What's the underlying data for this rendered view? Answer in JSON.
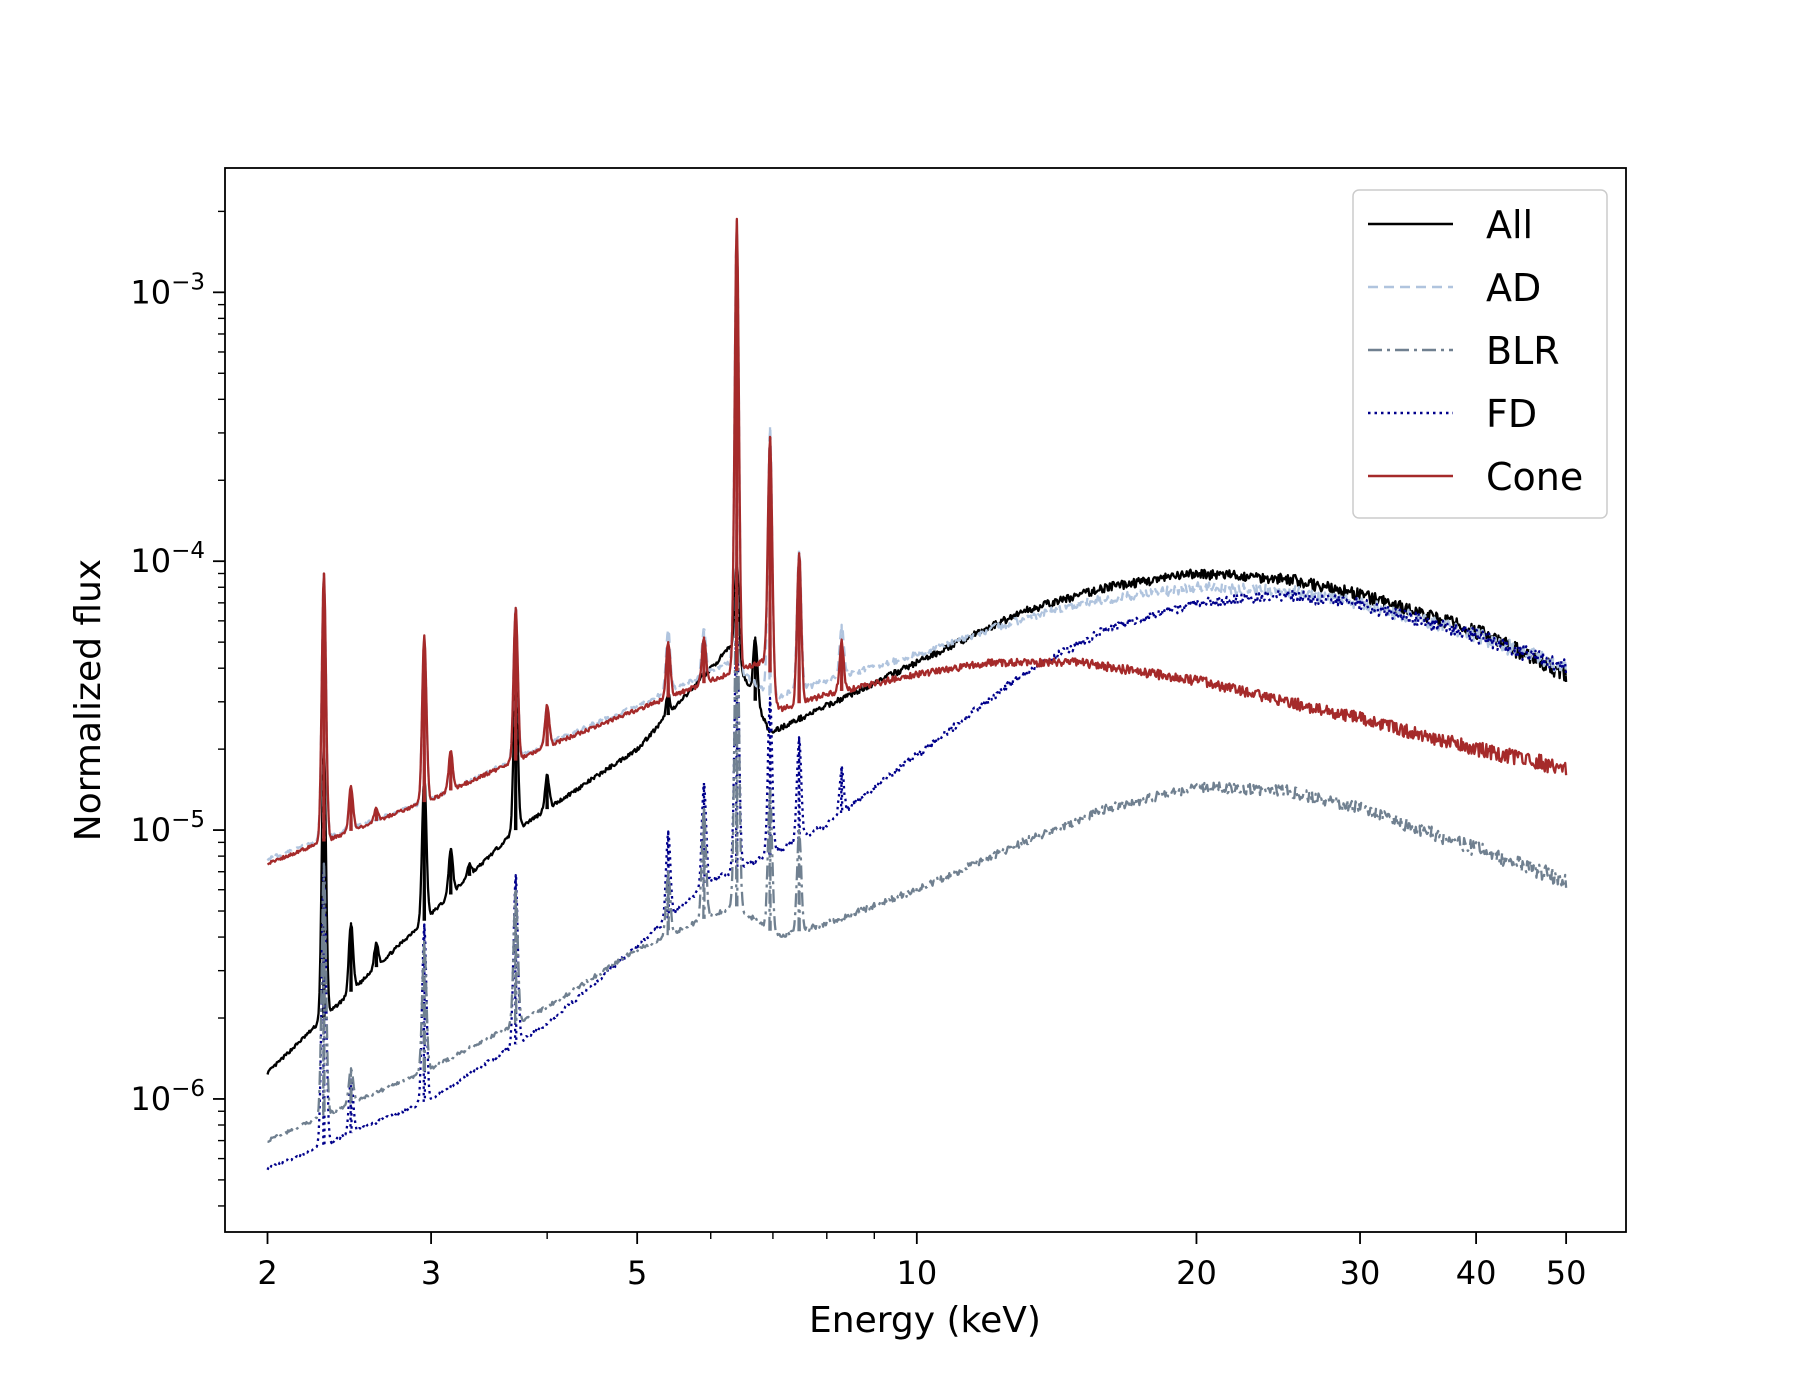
{
  "chart_data": {
    "type": "line",
    "title": "",
    "xlabel": "Energy (keV)",
    "ylabel": "Normalized flux",
    "xscale": "log",
    "yscale": "log",
    "xlim": [
      1.8,
      58
    ],
    "ylim": [
      3.2e-07,
      0.0029
    ],
    "x_ticks": [
      {
        "value": 2,
        "label": "2"
      },
      {
        "value": 3,
        "label": "3"
      },
      {
        "value": 5,
        "label": "5"
      },
      {
        "value": 10,
        "label": "10"
      },
      {
        "value": 20,
        "label": "20"
      },
      {
        "value": 30,
        "label": "30"
      },
      {
        "value": 40,
        "label": "40"
      },
      {
        "value": 50,
        "label": "50"
      }
    ],
    "y_ticks": [
      {
        "value": 1e-06,
        "base": "10",
        "exp": "−6"
      },
      {
        "value": 1e-05,
        "base": "10",
        "exp": "−5"
      },
      {
        "value": 0.0001,
        "base": "10",
        "exp": "−4"
      },
      {
        "value": 0.001,
        "base": "10",
        "exp": "−3"
      }
    ],
    "grid": false,
    "legend_position": "top-right",
    "series": [
      {
        "name": "All",
        "color": "#000000",
        "dash": "solid",
        "continuum": [
          [
            2,
            1.25e-06
          ],
          [
            2.3,
            2e-06
          ],
          [
            2.95,
            4.6e-06
          ],
          [
            3.7,
            1e-05
          ],
          [
            5.0,
            2e-05
          ],
          [
            6.3,
            4.8e-05
          ],
          [
            6.95,
            2.3e-05
          ],
          [
            8,
            2.9e-05
          ],
          [
            10,
            4.2e-05
          ],
          [
            13,
            6.5e-05
          ],
          [
            16,
            8e-05
          ],
          [
            20,
            9e-05
          ],
          [
            25,
            8.6e-05
          ],
          [
            30,
            7.5e-05
          ],
          [
            40,
            5.5e-05
          ],
          [
            50,
            3.8e-05
          ]
        ],
        "lines": [
          [
            2.3,
            2.1e-05
          ],
          [
            2.46,
            4.5e-06
          ],
          [
            2.62,
            3.8e-06
          ],
          [
            2.95,
            1.6e-05
          ],
          [
            3.15,
            8.5e-06
          ],
          [
            3.3,
            7.5e-06
          ],
          [
            3.7,
            3.6e-05
          ],
          [
            4.0,
            1.6e-05
          ],
          [
            5.4,
            3.2e-05
          ],
          [
            5.9,
            3.8e-05
          ],
          [
            6.4,
            0.0001
          ],
          [
            6.7,
            5.2e-05
          ]
        ]
      },
      {
        "name": "AD",
        "color": "#b0c4de",
        "dash": "dashed",
        "continuum": [
          [
            2,
            7.8e-06
          ],
          [
            3,
            1.3e-05
          ],
          [
            4,
            2.1e-05
          ],
          [
            5,
            2.9e-05
          ],
          [
            6.3,
            4.2e-05
          ],
          [
            7,
            3.1e-05
          ],
          [
            8,
            3.6e-05
          ],
          [
            10,
            4.5e-05
          ],
          [
            12,
            5.6e-05
          ],
          [
            15,
            7e-05
          ],
          [
            20,
            8e-05
          ],
          [
            25,
            7.8e-05
          ],
          [
            30,
            7e-05
          ],
          [
            40,
            5.3e-05
          ],
          [
            50,
            4e-05
          ]
        ],
        "lines": [
          [
            2.3,
            9e-05
          ],
          [
            2.46,
            1.4e-05
          ],
          [
            2.95,
            5.2e-05
          ],
          [
            3.15,
            1.9e-05
          ],
          [
            3.7,
            6.7e-05
          ],
          [
            4.0,
            2.9e-05
          ],
          [
            5.4,
            5.5e-05
          ],
          [
            5.9,
            5.6e-05
          ],
          [
            6.4,
            0.00185
          ],
          [
            6.95,
            0.00032
          ],
          [
            7.47,
            0.00011
          ],
          [
            8.3,
            5.8e-05
          ]
        ]
      },
      {
        "name": "BLR",
        "color": "#708090",
        "dash": "dashdot",
        "continuum": [
          [
            2,
            7e-07
          ],
          [
            3,
            1.3e-06
          ],
          [
            4,
            2.2e-06
          ],
          [
            5,
            3.6e-06
          ],
          [
            6,
            4.8e-06
          ],
          [
            6.4,
            5.2e-06
          ],
          [
            7.1,
            4e-06
          ],
          [
            8,
            4.5e-06
          ],
          [
            10,
            6e-06
          ],
          [
            13,
            9e-06
          ],
          [
            16,
            1.2e-05
          ],
          [
            20,
            1.45e-05
          ],
          [
            25,
            1.4e-05
          ],
          [
            30,
            1.2e-05
          ],
          [
            40,
            8.5e-06
          ],
          [
            50,
            6.5e-06
          ]
        ],
        "lines": [
          [
            2.3,
            7.5e-06
          ],
          [
            2.46,
            1.3e-06
          ],
          [
            2.95,
            3.8e-06
          ],
          [
            3.7,
            6e-06
          ],
          [
            5.4,
            7e-06
          ],
          [
            5.9,
            1.2e-05
          ],
          [
            6.4,
            9.8e-05
          ],
          [
            6.95,
            1.4e-05
          ],
          [
            7.47,
            1e-05
          ]
        ]
      },
      {
        "name": "FD",
        "color": "#00008b",
        "dash": "dotted",
        "continuum": [
          [
            2,
            5.5e-07
          ],
          [
            3,
            1e-06
          ],
          [
            4,
            1.9e-06
          ],
          [
            5,
            3.7e-06
          ],
          [
            6,
            6.5e-06
          ],
          [
            6.9,
            8e-06
          ],
          [
            8,
            1.05e-05
          ],
          [
            10,
            1.9e-05
          ],
          [
            13,
            3.8e-05
          ],
          [
            16,
            5.6e-05
          ],
          [
            20,
            7e-05
          ],
          [
            25,
            7.5e-05
          ],
          [
            30,
            6.9e-05
          ],
          [
            40,
            5.3e-05
          ],
          [
            50,
            4e-05
          ]
        ],
        "lines": [
          [
            2.3,
            7.5e-06
          ],
          [
            2.46,
            1.2e-06
          ],
          [
            2.95,
            4.5e-06
          ],
          [
            3.7,
            6.8e-06
          ],
          [
            5.4,
            1e-05
          ],
          [
            5.9,
            1.5e-05
          ],
          [
            6.4,
            6.4e-05
          ],
          [
            6.95,
            3.1e-05
          ],
          [
            7.47,
            2.2e-05
          ],
          [
            8.3,
            1.7e-05
          ]
        ]
      },
      {
        "name": "Cone",
        "color": "#a52a2a",
        "dash": "solid",
        "continuum": [
          [
            2,
            7.5e-06
          ],
          [
            3,
            1.3e-05
          ],
          [
            4,
            2.05e-05
          ],
          [
            5,
            2.8e-05
          ],
          [
            6,
            3.6e-05
          ],
          [
            6.9,
            4.3e-05
          ],
          [
            7.1,
            2.8e-05
          ],
          [
            8,
            3.2e-05
          ],
          [
            10,
            3.8e-05
          ],
          [
            12,
            4.2e-05
          ],
          [
            15,
            4.2e-05
          ],
          [
            20,
            3.6e-05
          ],
          [
            25,
            3e-05
          ],
          [
            30,
            2.6e-05
          ],
          [
            40,
            2e-05
          ],
          [
            50,
            1.7e-05
          ]
        ],
        "lines": [
          [
            2.3,
            9e-05
          ],
          [
            2.46,
            1.45e-05
          ],
          [
            2.62,
            1.2e-05
          ],
          [
            2.95,
            5.3e-05
          ],
          [
            3.15,
            1.95e-05
          ],
          [
            3.7,
            6.7e-05
          ],
          [
            4.0,
            2.9e-05
          ],
          [
            5.4,
            5e-05
          ],
          [
            5.9,
            5.2e-05
          ],
          [
            6.4,
            0.00185
          ],
          [
            6.95,
            0.00029
          ],
          [
            7.47,
            0.000107
          ],
          [
            8.3,
            5e-05
          ]
        ]
      }
    ]
  }
}
